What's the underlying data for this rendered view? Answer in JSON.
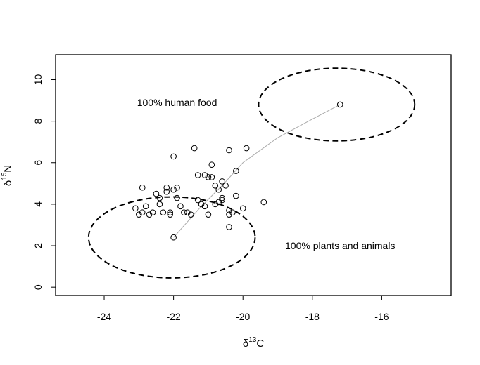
{
  "chart_data": {
    "type": "scatter",
    "xlim": [
      -25.4,
      -14.0
    ],
    "ylim": [
      -0.4,
      11.2
    ],
    "x_ticks": [
      -24,
      -22,
      -20,
      -18,
      -16
    ],
    "y_ticks": [
      0,
      2,
      4,
      6,
      8,
      10
    ],
    "x_tick_labels": [
      "-24",
      "-22",
      "-20",
      "-18",
      "-16"
    ],
    "y_tick_labels": [
      "0",
      "2",
      "4",
      "6",
      "8",
      "10"
    ],
    "xlabel": {
      "delta": "δ",
      "sup": "13",
      "elem": "C"
    },
    "ylabel": {
      "delta": "δ",
      "sup": "15",
      "elem": "N"
    },
    "grid": false,
    "annotations": [
      {
        "id": "human",
        "text": "100% human food",
        "x": -21.9,
        "y": 8.9
      },
      {
        "id": "plants",
        "text": "100% plants and animals",
        "x": -17.2,
        "y": 2.0
      }
    ],
    "ellipses": [
      {
        "name": "human-food-source",
        "cx": -17.3,
        "cy": 8.8,
        "rx": 2.25,
        "ry": 1.75,
        "style": "dashed"
      },
      {
        "name": "plants-animals-source",
        "cx": -22.05,
        "cy": 2.4,
        "rx": 2.4,
        "ry": 1.95,
        "style": "dashed"
      }
    ],
    "mixing_line": {
      "x": [
        -22.0,
        -21.2,
        -20.6,
        -20.0,
        -19.0,
        -18.0,
        -17.2
      ],
      "y": [
        2.4,
        3.9,
        4.9,
        6.0,
        7.2,
        8.1,
        8.8
      ],
      "color": "#aaaaaa"
    },
    "points": {
      "x": [
        -17.2,
        -21.4,
        -20.4,
        -19.9,
        -22.0,
        -20.9,
        -20.2,
        -21.3,
        -21.1,
        -21.0,
        -20.9,
        -20.6,
        -20.8,
        -20.5,
        -20.7,
        -22.9,
        -22.2,
        -22.0,
        -21.9,
        -22.5,
        -22.4,
        -22.2,
        -21.9,
        -22.4,
        -21.8,
        -22.8,
        -22.9,
        -23.1,
        -23.0,
        -22.7,
        -22.6,
        -22.3,
        -22.1,
        -22.1,
        -21.7,
        -21.6,
        -21.5,
        -21.3,
        -21.2,
        -21.1,
        -21.0,
        -20.8,
        -20.7,
        -20.6,
        -20.6,
        -20.4,
        -20.4,
        -20.4,
        -20.3,
        -20.2,
        -20.0,
        -19.4,
        -22.0
      ],
      "y": [
        8.8,
        6.7,
        6.6,
        6.7,
        6.3,
        5.9,
        5.6,
        5.4,
        5.4,
        5.3,
        5.3,
        5.1,
        4.9,
        4.9,
        4.7,
        4.8,
        4.8,
        4.7,
        4.8,
        4.5,
        4.3,
        4.6,
        4.3,
        4.0,
        3.9,
        3.9,
        3.6,
        3.8,
        3.5,
        3.5,
        3.6,
        3.6,
        3.5,
        3.6,
        3.6,
        3.6,
        3.5,
        4.2,
        4.0,
        3.9,
        3.5,
        4.0,
        4.1,
        4.3,
        4.2,
        3.5,
        3.7,
        2.9,
        3.6,
        4.4,
        3.8,
        4.1,
        2.4
      ]
    }
  }
}
